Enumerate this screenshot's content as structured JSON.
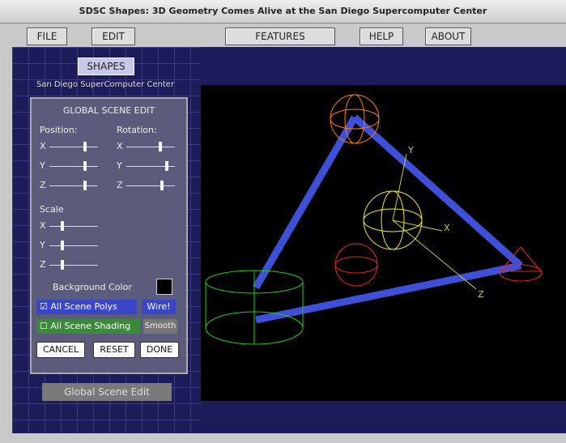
{
  "window": {
    "title": "SDSC Shapes: 3D Geometry Comes Alive at the San Diego Supercomputer Center"
  },
  "menu": [
    "FILE",
    "EDIT",
    "FEATURES",
    "HELP",
    "ABOUT"
  ],
  "sidebar": {
    "button": "SHAPES",
    "caption": "San Diego SuperComputer Center",
    "bottom_button": "Global Scene Edit"
  },
  "panel": {
    "title": "GLOBAL SCENE EDIT",
    "position": "Position:",
    "rotation": "Rotation:",
    "axes": [
      "X",
      "Y",
      "Z"
    ],
    "scale": "Scale",
    "background": "Background Color",
    "polys": "All Scene Polys",
    "polys_mode": "Wire!",
    "shading": "All Scene Shading",
    "shading_mode": "Smooth",
    "buttons": [
      "CANCEL",
      "RESET",
      "DONE"
    ]
  },
  "scene": {
    "axis_labels": [
      "Y",
      "X",
      "Z"
    ]
  }
}
